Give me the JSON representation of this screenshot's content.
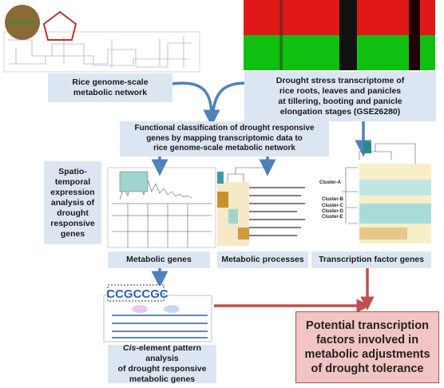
{
  "logo": "RiceCyc",
  "boxes": {
    "network": [
      "Rice genome-scale",
      "metabolic network"
    ],
    "transcriptome": [
      "Drought stress transcriptome of",
      "rice roots, leaves and panicles",
      "at tillering, booting and panicle",
      "elongation stages (GSE26280)"
    ],
    "classification": [
      "Functional classification of drought responsive",
      "genes by mapping transcriptomic data to",
      "rice genome-scale metabolic network"
    ],
    "spatiotemporal": [
      "Spatio-",
      "temporal",
      "expression",
      "analysis of",
      "drought",
      "responsive",
      "genes"
    ],
    "metabolic_genes": "Metabolic genes",
    "metabolic_processes": "Metabolic processes",
    "tf_genes": "Transcription factor genes",
    "cis": {
      "italic": "Cis",
      "first_line_rest": "-element pattern analysis",
      "lines": [
        "of drought responsive",
        "metabolic genes"
      ]
    },
    "potential": [
      "Potential transcription",
      "factors involved in",
      "metabolic adjustments",
      "of drought tolerance"
    ]
  },
  "clusters": [
    "Cluster-A",
    "Cluster-B",
    "Cluster-C",
    "Cluster-D",
    "Cluster-E"
  ]
}
